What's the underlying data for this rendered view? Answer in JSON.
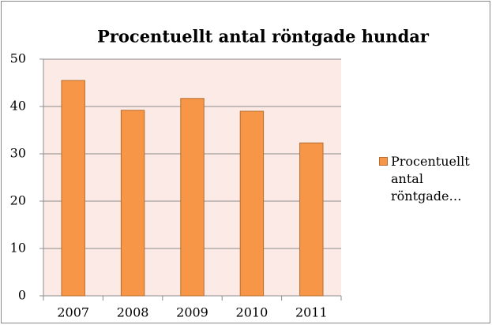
{
  "chart_data": {
    "type": "bar",
    "title": "Procentuellt antal röntgade hundar",
    "categories": [
      "2007",
      "2008",
      "2009",
      "2010",
      "2011"
    ],
    "series": [
      {
        "name": "Procentuellt antal röntgade…",
        "color": "#f79646",
        "values": [
          45.5,
          39.2,
          41.7,
          39,
          32.3
        ]
      }
    ],
    "ylim": [
      0,
      50
    ],
    "yticks": [
      0,
      10,
      20,
      30,
      40,
      50
    ],
    "grid": true,
    "legend": "right"
  }
}
